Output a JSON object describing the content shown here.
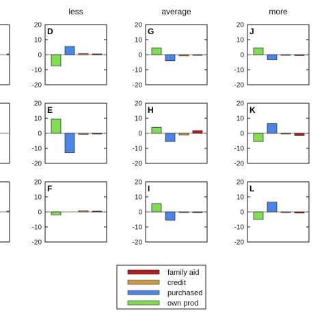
{
  "chart_data": {
    "type": "bar",
    "column_titles": [
      "less",
      "average",
      "more"
    ],
    "series_names": [
      "own prod",
      "purchased",
      "credit",
      "family aid"
    ],
    "colors": {
      "own prod": "#7ee050",
      "purchased": "#4a86ea",
      "credit": "#d19a3a",
      "family aid": "#b61c1c"
    },
    "ylim": [
      -20,
      20
    ],
    "yticks": [
      20,
      10,
      0,
      -10,
      -20
    ],
    "legend": {
      "placement": "bottom-center",
      "entries": [
        "family aid",
        "credit",
        "purchased",
        "own prod"
      ]
    },
    "left_panel_partial_marks": [
      {
        "row": 0,
        "series": "family aid",
        "value": 0.5
      },
      {
        "row": 2,
        "series": "family aid",
        "value": 0.6
      }
    ],
    "panels": [
      {
        "letter": "D",
        "column": "less",
        "row": 0,
        "values": {
          "own prod": -7.5,
          "purchased": 5.5,
          "credit": 0.8,
          "family aid": 0.5
        }
      },
      {
        "letter": "G",
        "column": "average",
        "row": 0,
        "values": {
          "own prod": 4.5,
          "purchased": -4.0,
          "credit": -0.8,
          "family aid": -0.3
        }
      },
      {
        "letter": "J",
        "column": "more",
        "row": 0,
        "values": {
          "own prod": 4.5,
          "purchased": -3.5,
          "credit": -0.4,
          "family aid": -0.6
        }
      },
      {
        "letter": "E",
        "column": "less",
        "row": 1,
        "values": {
          "own prod": 9.5,
          "purchased": -13.0,
          "credit": -0.7,
          "family aid": -0.3
        }
      },
      {
        "letter": "H",
        "column": "average",
        "row": 1,
        "values": {
          "own prod": 4.0,
          "purchased": -5.5,
          "credit": -1.2,
          "family aid": 1.8
        }
      },
      {
        "letter": "K",
        "column": "more",
        "row": 1,
        "values": {
          "own prod": -5.5,
          "purchased": 6.5,
          "credit": -0.3,
          "family aid": -1.5
        }
      },
      {
        "letter": "F",
        "column": "less",
        "row": 2,
        "values": {
          "own prod": -2.0,
          "purchased": 0.0,
          "credit": 0.8,
          "family aid": 0.5
        }
      },
      {
        "letter": "I",
        "column": "average",
        "row": 2,
        "values": {
          "own prod": 5.5,
          "purchased": -5.5,
          "credit": -0.5,
          "family aid": -0.5
        }
      },
      {
        "letter": "L",
        "column": "more",
        "row": 2,
        "values": {
          "own prod": -5.0,
          "purchased": 6.5,
          "credit": -0.5,
          "family aid": -0.8
        }
      }
    ]
  }
}
